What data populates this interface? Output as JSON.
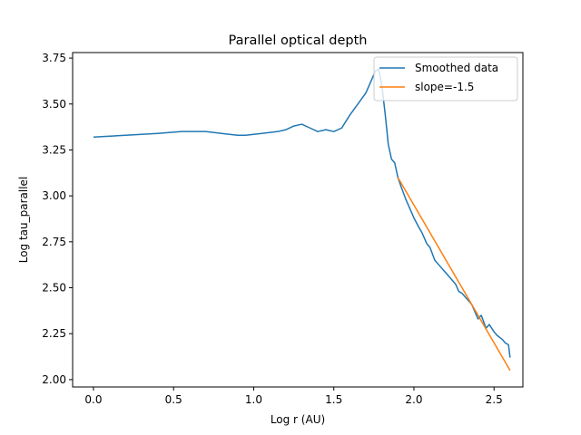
{
  "chart_data": {
    "type": "line",
    "title": "Parallel optical depth",
    "xlabel": "Log r (AU)",
    "ylabel": "Log tau_parallel",
    "xlim": [
      -0.13,
      2.68
    ],
    "ylim": [
      1.96,
      3.78
    ],
    "xticks": [
      0.0,
      0.5,
      1.0,
      1.5,
      2.0,
      2.5
    ],
    "xtick_labels": [
      "0.0",
      "0.5",
      "1.0",
      "1.5",
      "2.0",
      "2.5"
    ],
    "yticks": [
      2.0,
      2.25,
      2.5,
      2.75,
      3.0,
      3.25,
      3.5,
      3.75
    ],
    "ytick_labels": [
      "2.00",
      "2.25",
      "2.50",
      "2.75",
      "3.00",
      "3.25",
      "3.50",
      "3.75"
    ],
    "grid": false,
    "legend_position": "top-right",
    "series": [
      {
        "name": "Smoothed data",
        "color": "#1f77b4",
        "x": [
          0.0,
          0.2,
          0.4,
          0.55,
          0.7,
          0.8,
          0.9,
          0.95,
          1.05,
          1.15,
          1.2,
          1.25,
          1.3,
          1.35,
          1.4,
          1.45,
          1.5,
          1.55,
          1.6,
          1.65,
          1.7,
          1.73,
          1.76,
          1.78,
          1.8,
          1.82,
          1.84,
          1.86,
          1.88,
          1.9,
          1.92,
          1.95,
          1.98,
          2.0,
          2.03,
          2.05,
          2.08,
          2.1,
          2.13,
          2.16,
          2.18,
          2.2,
          2.23,
          2.26,
          2.28,
          2.3,
          2.33,
          2.36,
          2.38,
          2.4,
          2.42,
          2.45,
          2.47,
          2.5,
          2.52,
          2.55,
          2.57,
          2.59,
          2.6
        ],
        "y": [
          3.32,
          3.33,
          3.34,
          3.35,
          3.35,
          3.34,
          3.33,
          3.33,
          3.34,
          3.35,
          3.36,
          3.38,
          3.39,
          3.37,
          3.35,
          3.36,
          3.35,
          3.37,
          3.44,
          3.5,
          3.56,
          3.62,
          3.68,
          3.69,
          3.6,
          3.45,
          3.28,
          3.2,
          3.18,
          3.1,
          3.05,
          2.98,
          2.92,
          2.88,
          2.83,
          2.8,
          2.74,
          2.72,
          2.65,
          2.62,
          2.6,
          2.58,
          2.55,
          2.52,
          2.48,
          2.47,
          2.44,
          2.41,
          2.37,
          2.33,
          2.35,
          2.28,
          2.3,
          2.26,
          2.24,
          2.22,
          2.2,
          2.19,
          2.12
        ]
      },
      {
        "name": "slope=-1.5",
        "color": "#ff7f0e",
        "x": [
          1.9,
          2.6
        ],
        "y": [
          3.1,
          2.05
        ]
      }
    ]
  }
}
